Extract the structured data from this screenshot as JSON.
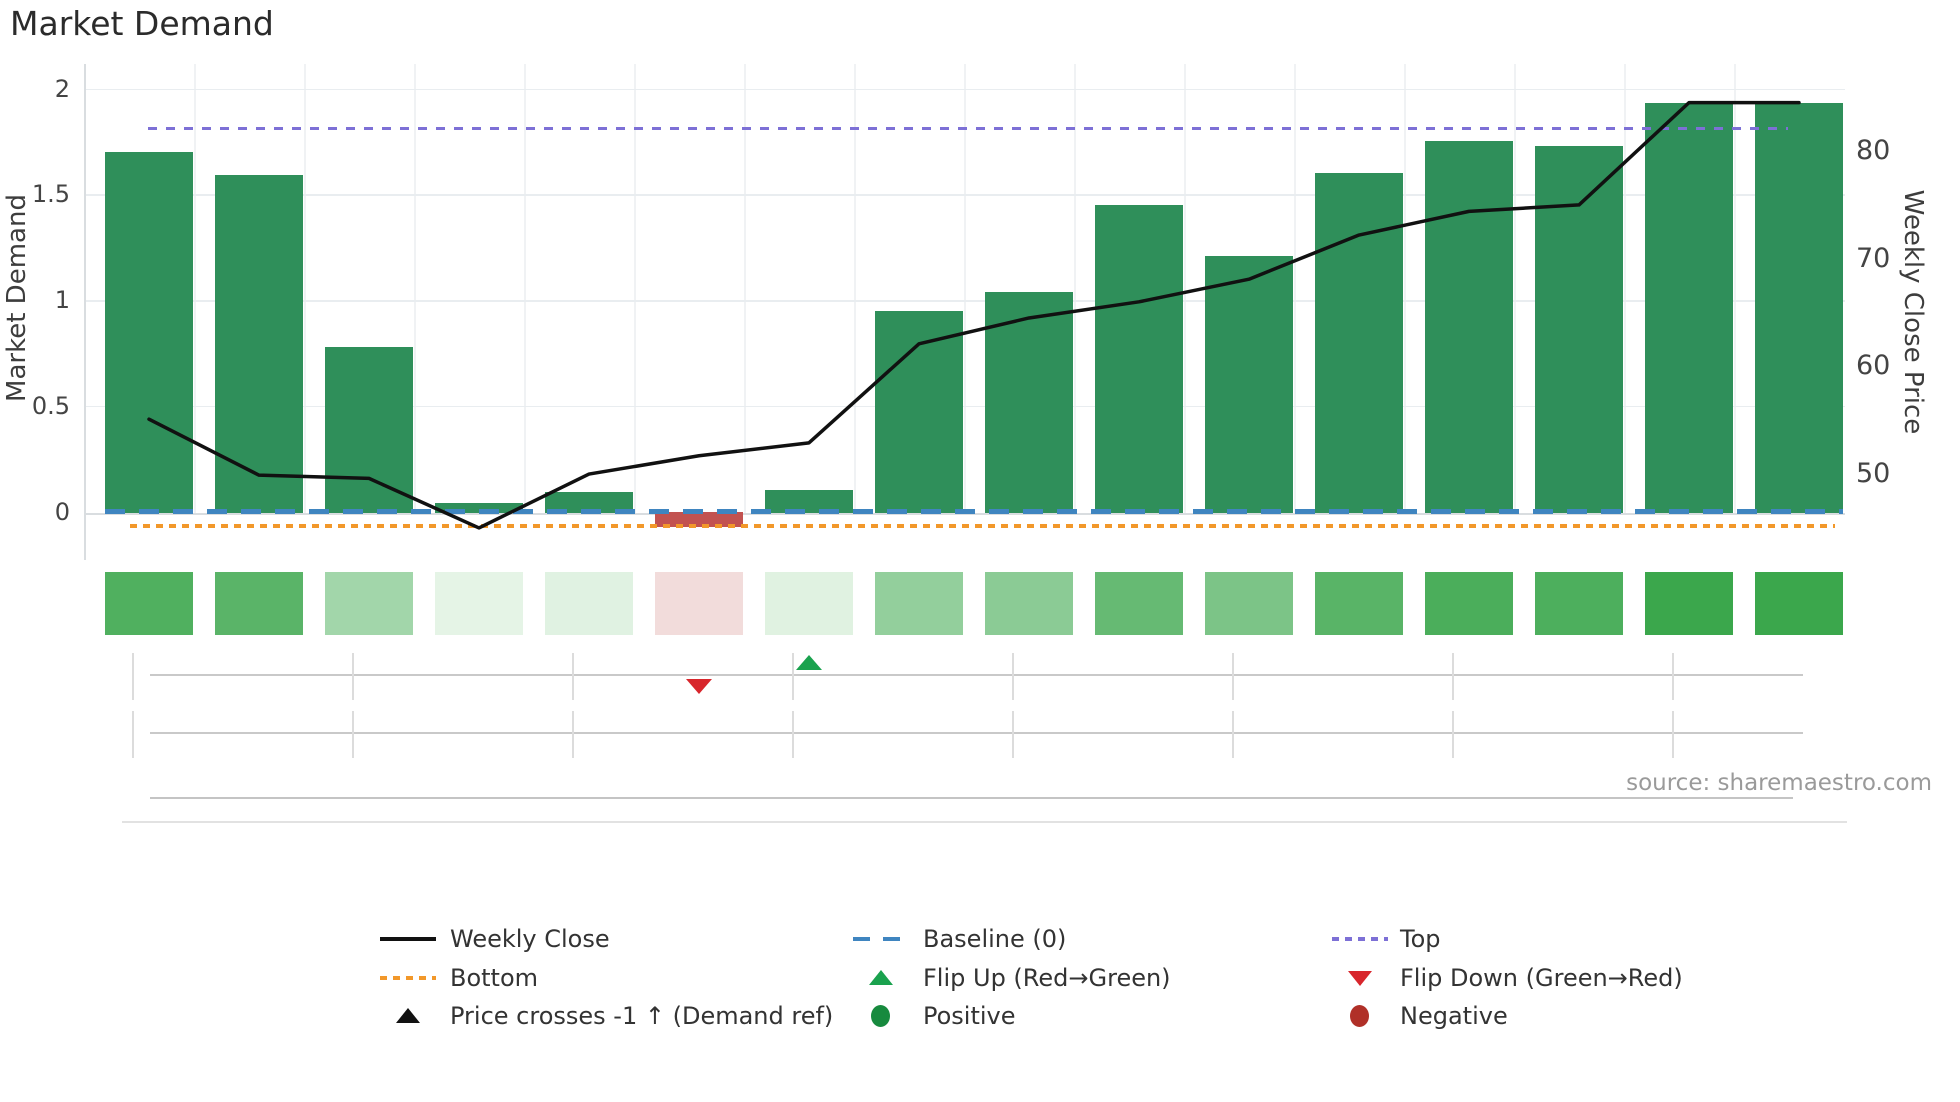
{
  "title": "Market Demand",
  "source_text": "source: sharemaestro.com",
  "chart_data": {
    "type": "combo-bar-line-heatmap",
    "title": "Market Demand",
    "weeks": 16,
    "left_axis": {
      "title": "Market Demand",
      "ticks": [
        2,
        1.5,
        1,
        0.5,
        0
      ],
      "range": [
        -0.45,
        2.12
      ]
    },
    "right_axis": {
      "title": "Weekly Close Price",
      "ticks": [
        80,
        70,
        60,
        50
      ],
      "range": [
        46.5,
        88
      ]
    },
    "series": [
      {
        "name": "Market Demand",
        "type": "bar",
        "values": [
          1.7,
          1.59,
          0.78,
          0.04,
          0.09,
          -0.07,
          0.1,
          0.95,
          1.04,
          1.45,
          1.21,
          1.6,
          1.75,
          1.73,
          1.93,
          1.93
        ],
        "positive_color": "#2f8f5a",
        "negative_color": "#c25250"
      },
      {
        "name": "Weekly Close",
        "type": "line",
        "values": [
          55.0,
          49.8,
          49.5,
          44.9,
          49.9,
          51.6,
          52.8,
          62.0,
          64.4,
          65.9,
          68.0,
          72.1,
          74.3,
          74.9,
          84.4,
          84.4
        ],
        "color": "#111111"
      }
    ],
    "ref_lines": {
      "baseline": {
        "label": "Baseline (0)",
        "value": 0,
        "color": "#3f85c0",
        "style": "dashed"
      },
      "top": {
        "label": "Top",
        "value": 1.81,
        "color": "#7d70d6",
        "style": "dotted"
      },
      "bottom": {
        "label": "Bottom",
        "value": -0.07,
        "color": "#f2982a",
        "style": "dotted"
      }
    },
    "heatmap": {
      "values": [
        1.7,
        1.59,
        0.78,
        0.04,
        0.09,
        -0.07,
        0.1,
        0.95,
        1.04,
        1.45,
        1.21,
        1.6,
        1.75,
        1.73,
        1.93,
        1.93
      ],
      "colors": [
        "#50b05f",
        "#5ab468",
        "#a2d6aa",
        "#e5f4e6",
        "#e0f2e2",
        "#f2dcdb",
        "#e0f2e1",
        "#93cf9c",
        "#8bcb95",
        "#66ba73",
        "#7cc487",
        "#59b467",
        "#4bae5b",
        "#4daf5d",
        "#3ba74c",
        "#3ba74c"
      ]
    },
    "events": {
      "flip_up": {
        "week": 7,
        "color": "#1aa24e"
      },
      "flip_down": {
        "week": 6,
        "color": "#d8262c"
      }
    },
    "grid": true,
    "legend_position": "bottom"
  },
  "legend": {
    "items": [
      {
        "label": "Weekly Close",
        "swatch": "line",
        "color": "#111111",
        "col": 0,
        "row": 0
      },
      {
        "label": "Baseline (0)",
        "swatch": "dash",
        "color": "#3f85c0",
        "col": 1,
        "row": 0
      },
      {
        "label": "Top",
        "swatch": "dot",
        "color": "#7d70d6",
        "col": 2,
        "row": 0
      },
      {
        "label": "Bottom",
        "swatch": "dot",
        "color": "#f2982a",
        "col": 0,
        "row": 1
      },
      {
        "label": "Flip Up (Red→Green)",
        "swatch": "triangle-up",
        "color": "#1aa24e",
        "col": 1,
        "row": 1
      },
      {
        "label": "Flip Down (Green→Red)",
        "swatch": "triangle-down",
        "color": "#d8262c",
        "col": 2,
        "row": 1
      },
      {
        "label": "Price crosses -1 ↑ (Demand ref)",
        "swatch": "triangle-up",
        "color": "#111111",
        "col": 0,
        "row": 2
      },
      {
        "label": "Positive",
        "swatch": "circle",
        "color": "#178a3e",
        "col": 1,
        "row": 2
      },
      {
        "label": "Negative",
        "swatch": "circle",
        "color": "#b03028",
        "col": 2,
        "row": 2
      }
    ]
  }
}
